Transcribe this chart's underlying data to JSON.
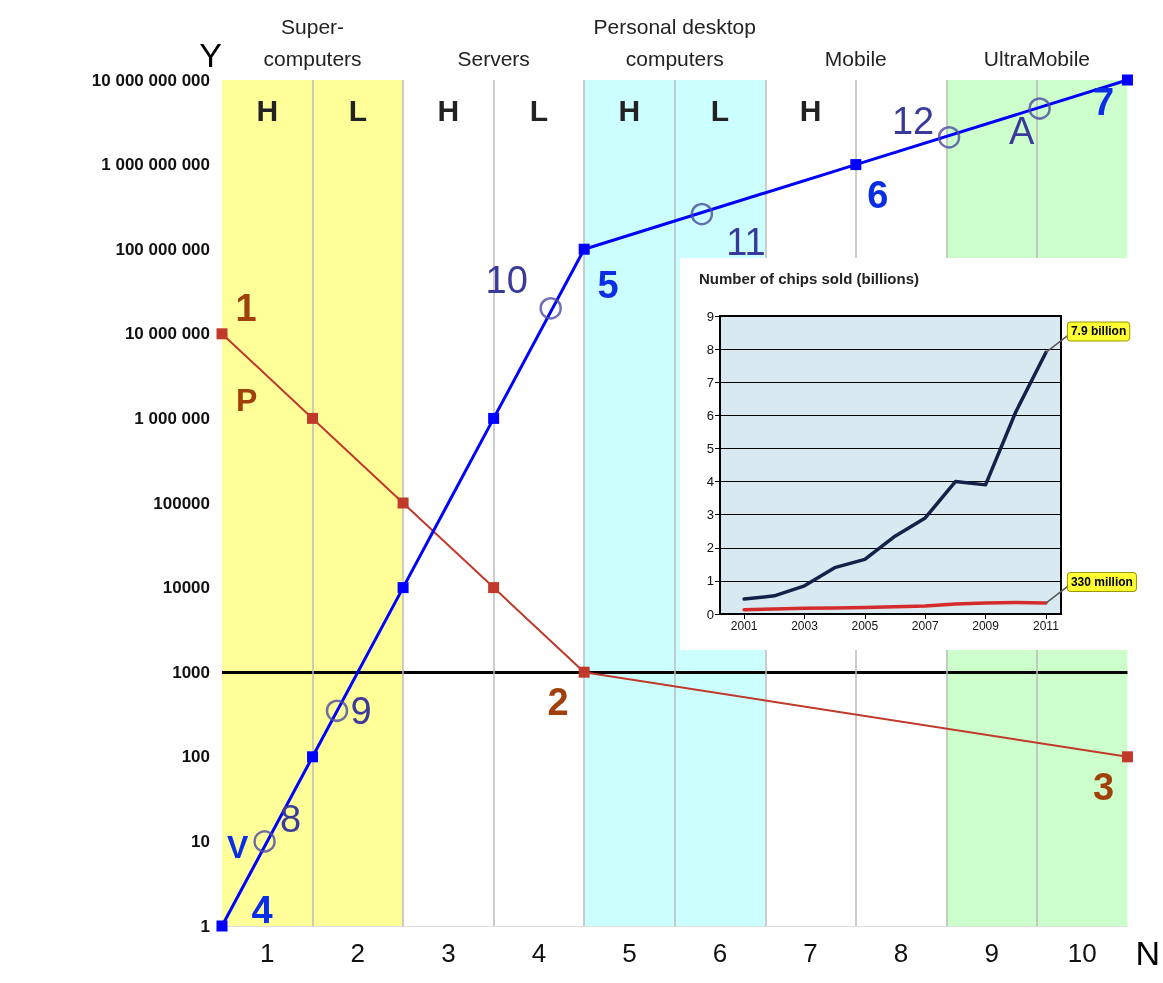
{
  "chart_data": [
    {
      "type": "line",
      "xlabel": "N",
      "ylabel": "Y",
      "log": "y",
      "grid": false,
      "marker": "square",
      "line_style": "solid",
      "xlim": [
        0,
        10
      ],
      "xticks": [
        {
          "value": 0.5,
          "label": "1"
        },
        {
          "value": 1.5,
          "label": "2"
        },
        {
          "value": 2.5,
          "label": "3"
        },
        {
          "value": 3.5,
          "label": "4"
        },
        {
          "value": 4.5,
          "label": "5"
        },
        {
          "value": 5.5,
          "label": "6"
        },
        {
          "value": 6.5,
          "label": "7"
        },
        {
          "value": 7.5,
          "label": "8"
        },
        {
          "value": 8.5,
          "label": "9"
        },
        {
          "value": 9.5,
          "label": "10"
        }
      ],
      "ylim": [
        1,
        10000000000
      ],
      "yticks": [
        {
          "value": 1,
          "label": "1"
        },
        {
          "value": 10,
          "label": "10"
        },
        {
          "value": 100,
          "label": "100"
        },
        {
          "value": 1000,
          "label": "1000"
        },
        {
          "value": 10000,
          "label": "10000"
        },
        {
          "value": 100000,
          "label": "100000"
        },
        {
          "value": 1000000,
          "label": "1 000 000"
        },
        {
          "value": 10000000,
          "label": "10 000 000"
        },
        {
          "value": 100000000,
          "label": "100 000 000"
        },
        {
          "value": 1000000000,
          "label": "1 000 000 000"
        },
        {
          "value": 10000000000,
          "label": "10 000 000 000"
        }
      ],
      "series": [
        {
          "name": "P",
          "color": "#c0392b",
          "x": [
            0,
            1,
            2,
            3,
            4,
            10
          ],
          "values": [
            10000000,
            1000000,
            100000,
            10000,
            1000,
            100
          ]
        },
        {
          "name": "V",
          "color": "#0000ff",
          "x": [
            0,
            1,
            2,
            3,
            4,
            7,
            10
          ],
          "values": [
            1,
            100,
            10000,
            1000000,
            100000000,
            1000000000,
            10000000000
          ]
        },
        {
          "type": "scatter",
          "marker": "circle",
          "color": "#4a4aa0",
          "x": [
            0.47,
            1.27,
            3.63,
            5.3,
            8.03,
            9.03
          ],
          "values": [
            10,
            350,
            20000000,
            260000000,
            2100000000,
            4600000000
          ]
        }
      ],
      "bands": [
        {
          "axis": "x",
          "from": 0,
          "to": 2,
          "label": "Super-\ncomputers",
          "color": "#ffff99"
        },
        {
          "axis": "x",
          "from": 4,
          "to": 6,
          "label": "Personal desktop\ncomputers",
          "color": "#ccffff"
        },
        {
          "axis": "x",
          "from": 8,
          "to": 10,
          "label": "UltraMobile",
          "color": "#ccffcc"
        }
      ],
      "ref_lines": [
        {
          "axis": "y",
          "value": 1000,
          "color": "#000000"
        },
        {
          "axis": "x",
          "value": 1,
          "color": "#bbbbbb"
        },
        {
          "axis": "x",
          "value": 2,
          "color": "#bbbbbb"
        },
        {
          "axis": "x",
          "value": 3,
          "color": "#bbbbbb"
        },
        {
          "axis": "x",
          "value": 4,
          "color": "#bbbbbb"
        },
        {
          "axis": "x",
          "value": 5,
          "color": "#bbbbbb"
        },
        {
          "axis": "x",
          "value": 6,
          "color": "#bbbbbb"
        },
        {
          "axis": "x",
          "value": 7,
          "color": "#bbbbbb"
        },
        {
          "axis": "x",
          "value": 8,
          "color": "#bbbbbb"
        },
        {
          "axis": "x",
          "value": 9,
          "color": "#bbbbbb"
        }
      ],
      "annotations": [
        "Servers",
        "Mobile",
        "H",
        "L",
        "H",
        "L",
        "H",
        "L",
        "H",
        {
          "text": "1",
          "x": 0,
          "y": 10000000
        },
        {
          "text": "2",
          "x": 4,
          "y": 1000
        },
        {
          "text": "3",
          "x": 10,
          "y": 100
        },
        {
          "text": "4",
          "x": 0,
          "y": 1
        },
        {
          "text": "5",
          "x": 4,
          "y": 100000000
        },
        {
          "text": "6",
          "x": 7,
          "y": 1000000000
        },
        {
          "text": "7",
          "x": 10,
          "y": 10000000000
        },
        {
          "text": "8",
          "x": 0.47,
          "y": 10
        },
        {
          "text": "9",
          "x": 1.27,
          "y": 350
        },
        {
          "text": "10",
          "x": 3.63,
          "y": 20000000
        },
        {
          "text": "11",
          "x": 5.3,
          "y": 260000000
        },
        {
          "text": "12",
          "x": 8.03,
          "y": 2100000000
        },
        {
          "text": "A",
          "x": 9.03,
          "y": 4600000000
        }
      ]
    },
    {
      "type": "line",
      "title": "Number of chips sold (billions)",
      "grid": "y",
      "marker": "none",
      "x": [
        2001,
        2002,
        2003,
        2004,
        2005,
        2006,
        2007,
        2008,
        2009,
        2010,
        2011
      ],
      "xlim": [
        2000.2,
        2011.5
      ],
      "xticks": [
        2001,
        2003,
        2005,
        2007,
        2009,
        2011
      ],
      "ylim": [
        0,
        9
      ],
      "yticks": [
        0,
        1,
        2,
        3,
        4,
        5,
        6,
        7,
        8,
        9
      ],
      "series": [
        {
          "color": "#14224a",
          "values": [
            0.45,
            0.55,
            0.85,
            1.4,
            1.65,
            2.35,
            2.9,
            4.0,
            3.9,
            6.1,
            7.9
          ]
        },
        {
          "color": "#d42c2c",
          "values": [
            0.13,
            0.15,
            0.17,
            0.18,
            0.2,
            0.22,
            0.24,
            0.3,
            0.33,
            0.35,
            0.33
          ]
        }
      ],
      "annotations": [
        {
          "text": "7.9 billion",
          "x": 2011,
          "y": 7.9
        },
        {
          "text": "330 million",
          "x": 2011,
          "y": 0.33
        }
      ]
    }
  ]
}
